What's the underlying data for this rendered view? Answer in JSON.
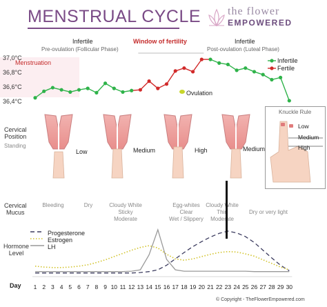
{
  "header": {
    "title": "MENSTRUAL CYCLE",
    "brand_top": "the flower",
    "brand_bottom": "EMPOWERED"
  },
  "phases": {
    "pre_title": "Infertile",
    "pre_sub": "Pre-ovulation (Follicular Phase)",
    "window": "Window of fertility",
    "post_title": "Infertile",
    "post_sub": "Post-ovulation (Luteal Phase)"
  },
  "temperature_chart": {
    "menstruation_label": "Menstruation",
    "ovulation_label": "Ovulation",
    "y_labels": [
      "37,0°C",
      "36,8°C",
      "36,6°C",
      "36,4°C"
    ],
    "legend": [
      {
        "label": "Infertile",
        "color": "#2fb34a"
      },
      {
        "label": "Fertile",
        "color": "#d12a2a"
      }
    ]
  },
  "chart_data": [
    {
      "type": "line",
      "title": "",
      "xlabel": "Day",
      "ylabel": "",
      "x": [
        1,
        2,
        3,
        4,
        5,
        6,
        7,
        8,
        9,
        10,
        11,
        12,
        13,
        14,
        15,
        16,
        17,
        18,
        19,
        20,
        21,
        22,
        23,
        24,
        25,
        26,
        27,
        28,
        29,
        30
      ],
      "ylim": [
        36.4,
        37.0
      ],
      "series": [
        {
          "name": "Infertile",
          "color": "#2fb34a",
          "x": [
            1,
            2,
            3,
            4,
            5,
            6,
            7,
            8,
            9,
            10,
            11,
            12,
            13,
            14,
            15,
            16,
            17,
            18,
            19,
            20,
            21,
            22,
            23,
            24,
            25,
            26,
            27,
            28,
            29,
            30
          ],
          "values": [
            36.45,
            36.54,
            36.59,
            36.56,
            36.53,
            36.56,
            36.58,
            36.52,
            36.65,
            36.58,
            36.53,
            36.55,
            null,
            null,
            null,
            null,
            null,
            null,
            null,
            null,
            36.98,
            36.93,
            36.91,
            36.83,
            36.86,
            36.81,
            36.77,
            36.7,
            36.73,
            36.41
          ]
        },
        {
          "name": "Fertile",
          "color": "#d12a2a",
          "x": [
            13,
            14,
            15,
            16,
            17,
            18,
            19,
            20
          ],
          "values": [
            36.56,
            36.68,
            36.58,
            36.64,
            36.82,
            36.86,
            36.81,
            36.98
          ]
        }
      ]
    },
    {
      "type": "line",
      "title": "",
      "xlabel": "Day",
      "ylabel": "Hormone Level",
      "x": [
        1,
        2,
        3,
        4,
        5,
        6,
        7,
        8,
        9,
        10,
        11,
        12,
        13,
        14,
        15,
        16,
        17,
        18,
        19,
        20,
        21,
        22,
        23,
        24,
        25,
        26,
        27,
        28,
        29,
        30
      ],
      "series": [
        {
          "name": "Progesterone",
          "color": "#3b3b5e",
          "style": "dashed",
          "values": [
            0.05,
            0.05,
            0.05,
            0.05,
            0.05,
            0.05,
            0.05,
            0.05,
            0.05,
            0.05,
            0.05,
            0.05,
            0.06,
            0.08,
            0.12,
            0.22,
            0.36,
            0.5,
            0.63,
            0.74,
            0.84,
            0.92,
            0.97,
            0.93,
            0.85,
            0.72,
            0.55,
            0.38,
            0.22,
            0.1
          ]
        },
        {
          "name": "Estrogen",
          "color": "#d2c32a",
          "style": "dotted",
          "values": [
            0.2,
            0.18,
            0.17,
            0.17,
            0.18,
            0.2,
            0.23,
            0.28,
            0.34,
            0.41,
            0.48,
            0.55,
            0.61,
            0.65,
            0.6,
            0.46,
            0.36,
            0.33,
            0.36,
            0.41,
            0.46,
            0.5,
            0.52,
            0.51,
            0.47,
            0.42,
            0.34,
            0.26,
            0.18,
            0.12
          ]
        },
        {
          "name": "LH",
          "color": "#999999",
          "style": "solid",
          "values": [
            0.08,
            0.08,
            0.08,
            0.08,
            0.08,
            0.08,
            0.08,
            0.08,
            0.08,
            0.08,
            0.08,
            0.09,
            0.12,
            0.45,
            1.0,
            0.35,
            0.12,
            0.09,
            0.09,
            0.09,
            0.09,
            0.09,
            0.09,
            0.09,
            0.09,
            0.08,
            0.08,
            0.08,
            0.08,
            0.08
          ]
        }
      ]
    }
  ],
  "rows": {
    "cervical_position": [
      "Cervical",
      "Position"
    ],
    "standing": "Standing",
    "cervical_mucus": [
      "Cervical",
      "Mucus"
    ],
    "hormone_level": [
      "Hormone",
      "Level"
    ],
    "day": "Day"
  },
  "positions": [
    "Low",
    "Medium",
    "High",
    "Medium"
  ],
  "mucus": [
    "Bleeding",
    "Dry",
    "Cloudy White\nSticky\nModerate",
    "Egg-whites\nClear\nWet / Slippery",
    "Cloudy White\nThin\nModerate",
    "Dry or very light"
  ],
  "knuckle_rule": {
    "title": "Knuckle Rule",
    "levels": [
      "Low",
      "Medium",
      "High"
    ]
  },
  "hormone_legend": [
    "Progesterone",
    "Estrogen",
    "LH"
  ],
  "days": [
    "1",
    "2",
    "3",
    "4",
    "5",
    "6",
    "7",
    "8",
    "9",
    "10",
    "11",
    "12",
    "13",
    "14",
    "15",
    "16",
    "17",
    "18",
    "19",
    "20",
    "21",
    "22",
    "23",
    "24",
    "25",
    "26",
    "27",
    "28",
    "29",
    "30"
  ],
  "copyright": "© Copyright - TheFlowerEmpowered.com"
}
